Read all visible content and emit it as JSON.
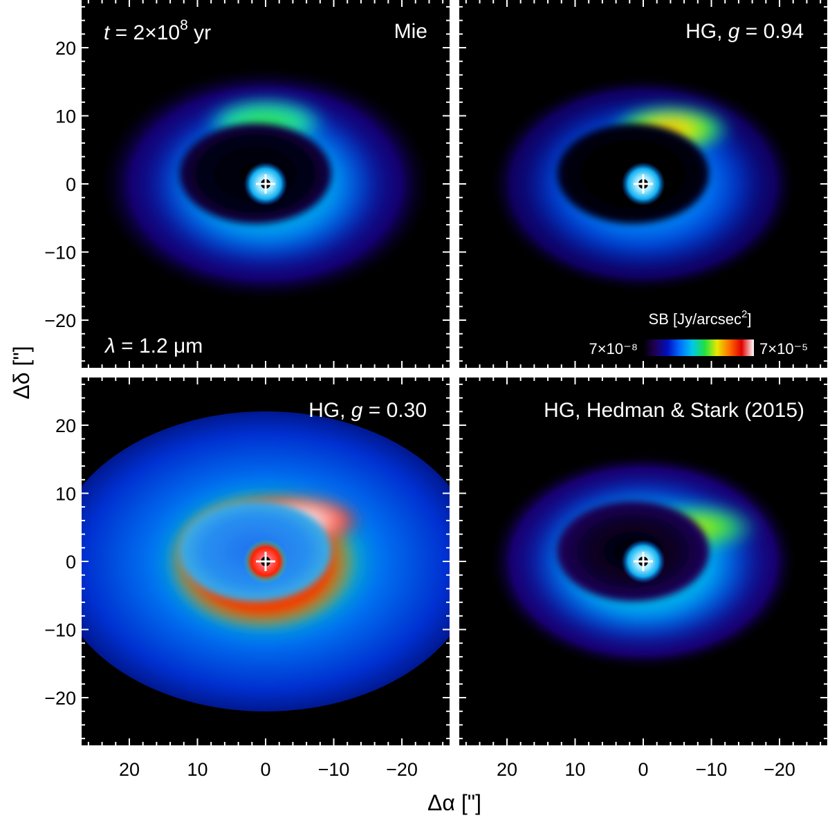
{
  "chart_data": {
    "type": "heatmap",
    "xlabel": "Δα [\"]",
    "ylabel": "Δδ [\"]",
    "xlim": [
      27,
      -27
    ],
    "ylim": [
      -27,
      27
    ],
    "xticks": [
      20,
      10,
      0,
      -10,
      -20
    ],
    "yticks": [
      20,
      10,
      0,
      -10,
      -20
    ],
    "colorbar": {
      "label": "SB [Jy/arcsec²]",
      "min_label": "7×10⁻⁸",
      "max_label": "7×10⁻⁵",
      "min": 7e-08,
      "max": 7e-05,
      "scale": "log",
      "colors": [
        "#000000",
        "#20005a",
        "#0010c0",
        "#0070ff",
        "#00c8e8",
        "#20e040",
        "#e8e800",
        "#ff7000",
        "#e00000",
        "#ffffff"
      ]
    },
    "panels": [
      {
        "key": "mie",
        "label": "Mie",
        "label_parts": [
          "Mie"
        ],
        "time_label": "t = 2×10⁸ yr",
        "wavelength_label": "λ = 1.2 μm",
        "peak_position": [
          0,
          9
        ],
        "ring_radius": [
          13,
          9
        ]
      },
      {
        "key": "hg094",
        "label": "HG, g = 0.94",
        "label_parts": [
          "HG, ",
          "g",
          " = 0.94"
        ],
        "peak_position": [
          -4,
          8
        ],
        "ring_radius": [
          13,
          9
        ]
      },
      {
        "key": "hg030",
        "label": "HG, g = 0.30",
        "label_parts": [
          "HG, ",
          "g",
          " = 0.30"
        ],
        "peak_position": [
          -5,
          6
        ],
        "ring_radius": [
          13,
          9
        ]
      },
      {
        "key": "hs2015",
        "label": "HG, Hedman & Stark (2015)",
        "label_parts": [
          "HG, Hedman & Stark (2015)"
        ],
        "peak_position": [
          -8,
          5
        ],
        "ring_radius": [
          13,
          9
        ]
      }
    ],
    "star_position": [
      0,
      0
    ]
  }
}
